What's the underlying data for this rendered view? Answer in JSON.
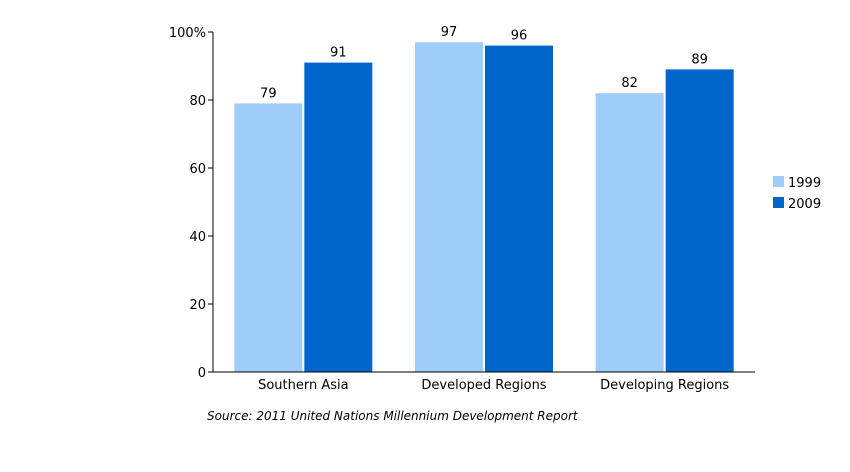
{
  "chart_data": {
    "type": "bar",
    "categories": [
      "Southern Asia",
      "Developed Regions",
      "Developing Regions"
    ],
    "series": [
      {
        "name": "1999",
        "values": [
          79,
          97,
          82
        ],
        "color": "#9fcdfa"
      },
      {
        "name": "2009",
        "values": [
          91,
          96,
          89
        ],
        "color": "#0066cc"
      }
    ],
    "y_ticks": [
      "0",
      "20",
      "40",
      "60",
      "80",
      "100%"
    ],
    "ylim": [
      0,
      100
    ],
    "grid": false,
    "legend_position": "right"
  },
  "source_note": "Source: 2011 United Nations Millennium Development Report"
}
